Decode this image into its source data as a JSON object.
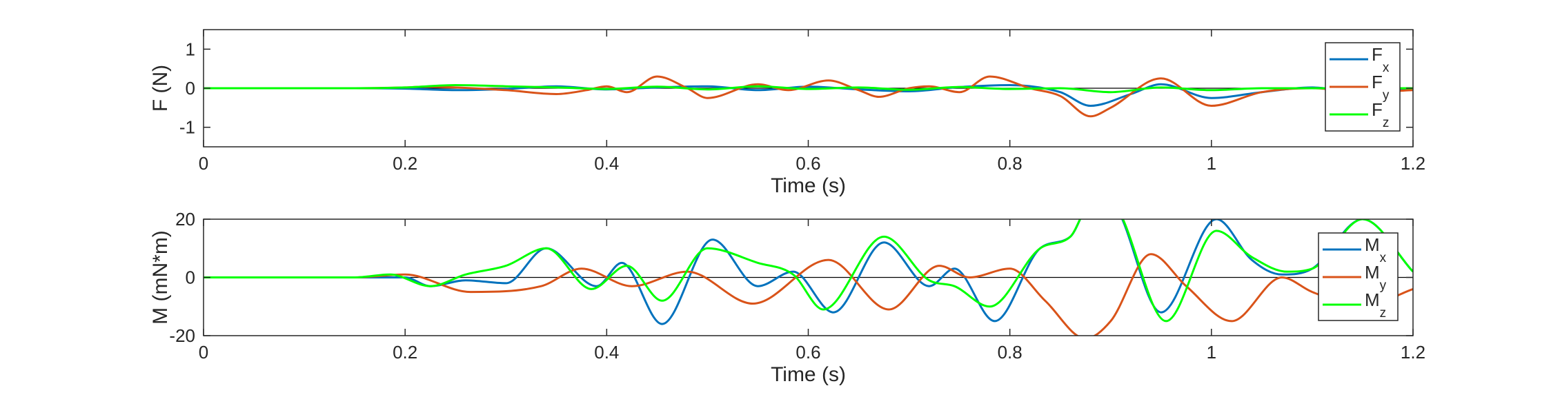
{
  "chart_data": [
    {
      "type": "line",
      "ylabel": "F (N)",
      "xlabel": "Time (s)",
      "xlim": [
        0,
        1.2
      ],
      "ylim": [
        -1.5,
        1.5
      ],
      "xticks": [
        "0",
        "0.2",
        "0.4",
        "0.6",
        "0.8",
        "1",
        "1.2"
      ],
      "yticks": [
        "-1",
        "0",
        "1"
      ],
      "ytick_values": [
        -1,
        0,
        1
      ],
      "zero_line": true,
      "grid": false,
      "legend_position": "top-right",
      "series": [
        {
          "name": "F",
          "sub": "x",
          "color": "#0072BD",
          "x": [
            0,
            0.15,
            0.2,
            0.25,
            0.3,
            0.35,
            0.4,
            0.45,
            0.5,
            0.55,
            0.6,
            0.65,
            0.7,
            0.75,
            0.8,
            0.85,
            0.88,
            0.92,
            0.95,
            1.0,
            1.05,
            1.1,
            1.15,
            1.2
          ],
          "y": [
            0,
            0,
            -0.01,
            -0.05,
            -0.02,
            0.05,
            -0.03,
            0.02,
            0.05,
            -0.05,
            0.04,
            -0.03,
            -0.08,
            0.03,
            0.08,
            -0.1,
            -0.45,
            -0.15,
            0.1,
            -0.25,
            -0.1,
            0.02,
            -0.1,
            0.0
          ]
        },
        {
          "name": "F",
          "sub": "y",
          "color": "#D95319",
          "x": [
            0,
            0.15,
            0.2,
            0.22,
            0.3,
            0.35,
            0.38,
            0.4,
            0.42,
            0.45,
            0.48,
            0.5,
            0.55,
            0.58,
            0.62,
            0.65,
            0.67,
            0.7,
            0.72,
            0.75,
            0.78,
            0.82,
            0.85,
            0.88,
            0.9,
            0.95,
            1.0,
            1.05,
            1.1,
            1.15,
            1.2
          ],
          "y": [
            0,
            0,
            0.02,
            0.04,
            -0.05,
            -0.15,
            -0.05,
            0.05,
            -0.1,
            0.3,
            0.0,
            -0.25,
            0.1,
            -0.05,
            0.2,
            -0.05,
            -0.22,
            0.0,
            0.05,
            -0.1,
            0.3,
            0.0,
            -0.2,
            -0.72,
            -0.5,
            0.25,
            -0.45,
            -0.1,
            0.0,
            -0.1,
            -0.05
          ]
        },
        {
          "name": "F",
          "sub": "z",
          "color": "#00FF00",
          "x": [
            0,
            0.15,
            0.2,
            0.25,
            0.3,
            0.35,
            0.4,
            0.45,
            0.5,
            0.55,
            0.6,
            0.65,
            0.7,
            0.75,
            0.8,
            0.85,
            0.9,
            0.95,
            1.0,
            1.05,
            1.1,
            1.15,
            1.2
          ],
          "y": [
            0,
            0,
            0.02,
            0.08,
            0.05,
            0.02,
            -0.02,
            0.04,
            -0.03,
            0.05,
            -0.02,
            0.02,
            -0.04,
            0.03,
            -0.02,
            0.0,
            -0.1,
            0.02,
            -0.05,
            0.0,
            0.0,
            0.0,
            0.0
          ]
        }
      ]
    },
    {
      "type": "line",
      "ylabel": "M (mN*m)",
      "xlabel": "Time (s)",
      "xlim": [
        0,
        1.2
      ],
      "ylim": [
        -20,
        20
      ],
      "xticks": [
        "0",
        "0.2",
        "0.4",
        "0.6",
        "0.8",
        "1",
        "1.2"
      ],
      "yticks": [
        "-20",
        "0",
        "20"
      ],
      "ytick_values": [
        -20,
        0,
        20
      ],
      "zero_line": true,
      "grid": false,
      "legend_position": "right",
      "series": [
        {
          "name": "M",
          "sub": "x",
          "color": "#0072BD",
          "x": [
            0,
            0.15,
            0.2,
            0.225,
            0.26,
            0.3,
            0.34,
            0.39,
            0.415,
            0.455,
            0.505,
            0.55,
            0.585,
            0.625,
            0.675,
            0.72,
            0.745,
            0.785,
            0.83,
            0.86,
            0.88,
            0.9,
            0.95,
            1.005,
            1.04,
            1.07,
            1.1,
            1.15,
            1.2
          ],
          "y": [
            0,
            0,
            0,
            -3,
            -1,
            -2,
            10,
            -3,
            5,
            -16,
            13,
            -3,
            2,
            -12,
            12,
            -3,
            3,
            -15,
            10,
            14,
            25,
            25,
            -12,
            20,
            6,
            1,
            3,
            20,
            2
          ]
        },
        {
          "name": "M",
          "sub": "y",
          "color": "#D95319",
          "x": [
            0,
            0.15,
            0.2,
            0.265,
            0.335,
            0.375,
            0.425,
            0.48,
            0.545,
            0.62,
            0.68,
            0.73,
            0.76,
            0.8,
            0.835,
            0.875,
            0.9,
            0.94,
            0.975,
            1.02,
            1.07,
            1.1,
            1.15,
            1.2
          ],
          "y": [
            0,
            0,
            1,
            -5,
            -3,
            3,
            -3,
            2,
            -9,
            6,
            -11,
            4,
            0,
            3,
            -8,
            -21,
            -15,
            8,
            -3,
            -15,
            0,
            -5,
            -10,
            -4
          ]
        },
        {
          "name": "M",
          "sub": "z",
          "color": "#00FF00",
          "x": [
            0,
            0.15,
            0.185,
            0.225,
            0.26,
            0.3,
            0.34,
            0.385,
            0.42,
            0.455,
            0.5,
            0.55,
            0.585,
            0.615,
            0.675,
            0.72,
            0.745,
            0.78,
            0.83,
            0.86,
            0.88,
            0.9,
            0.955,
            1.005,
            1.04,
            1.075,
            1.1,
            1.15,
            1.2
          ],
          "y": [
            0,
            0,
            1,
            -3,
            1,
            4,
            10,
            -4,
            4,
            -8,
            10,
            5,
            1,
            -11,
            14,
            -1,
            -3,
            -10,
            10,
            14,
            25,
            25,
            -15,
            16,
            7,
            2,
            3,
            20,
            2
          ]
        }
      ]
    }
  ]
}
